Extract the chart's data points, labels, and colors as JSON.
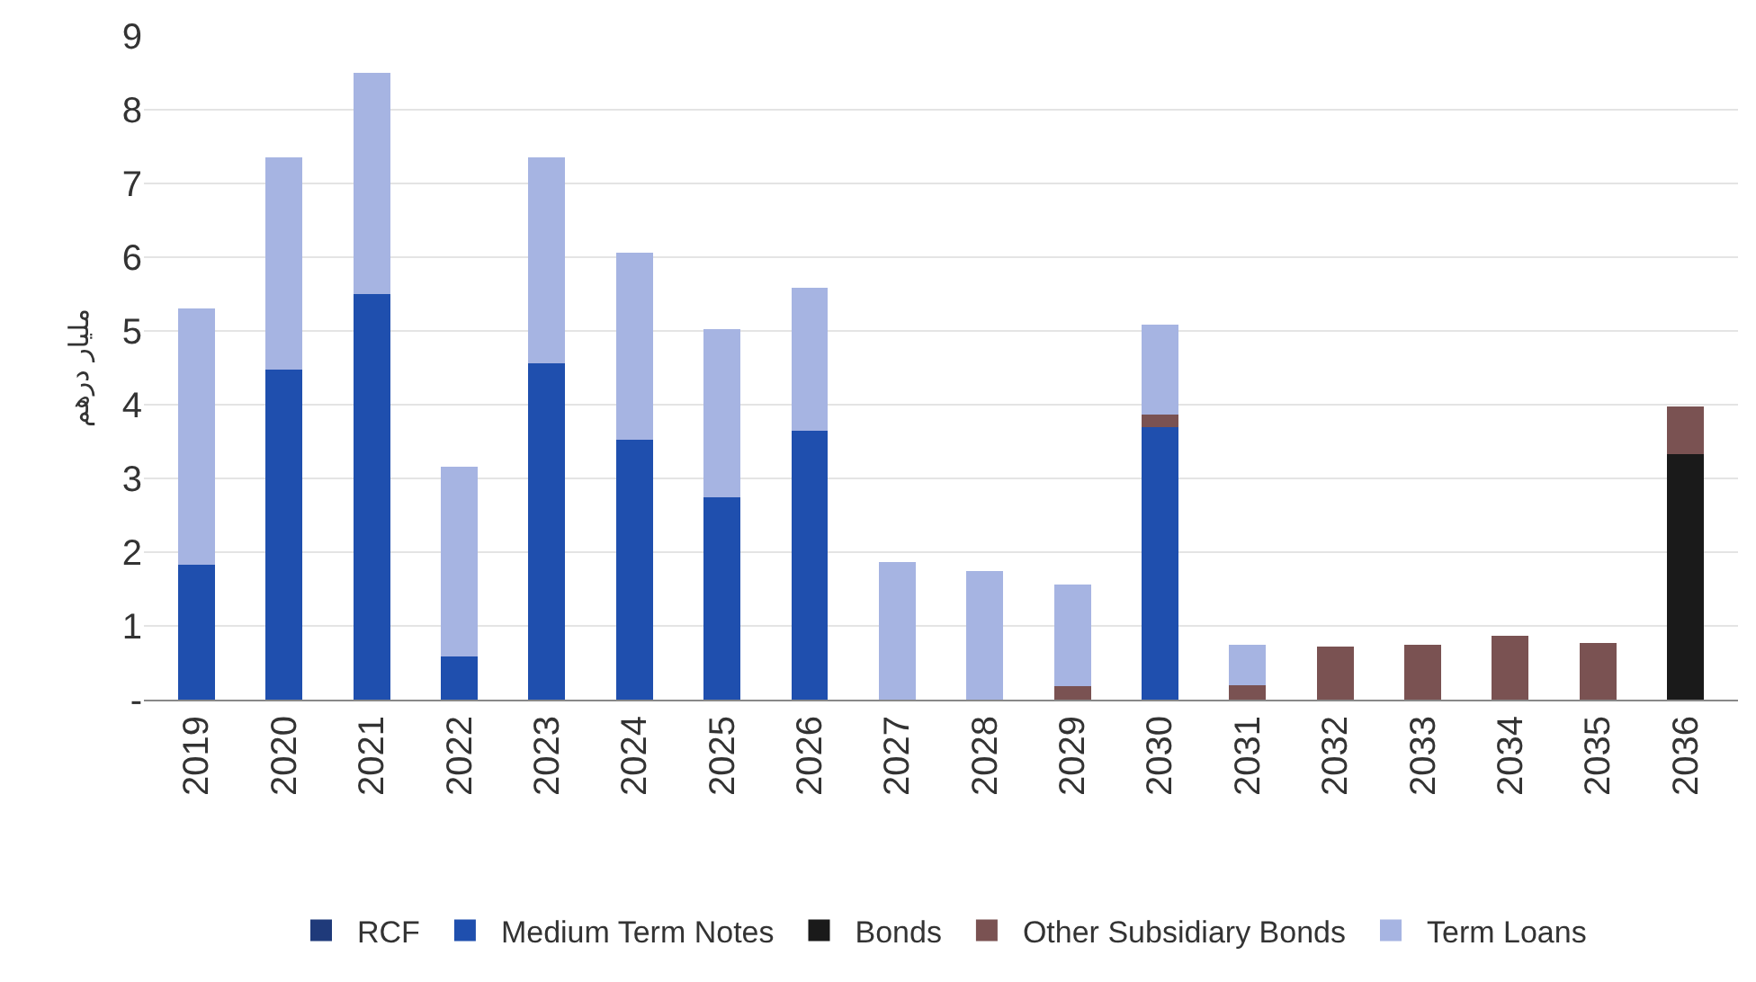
{
  "chart_data": {
    "type": "bar",
    "stacked": true,
    "ylabel": "مليار درهم",
    "categories": [
      "2019",
      "2020",
      "2021",
      "2022",
      "2023",
      "2024",
      "2025",
      "2026",
      "2027",
      "2028",
      "2029",
      "2030",
      "2031",
      "2032",
      "2033",
      "2034",
      "2035",
      "2036"
    ],
    "series": [
      {
        "name": "RCF",
        "color": "#1f3a7a",
        "values": [
          0,
          0,
          0,
          0,
          0,
          0,
          0,
          0,
          0,
          0,
          0,
          0,
          0,
          0,
          0,
          0,
          0,
          0
        ]
      },
      {
        "name": "Medium Term Notes",
        "color": "#1f4fae",
        "values": [
          1.83,
          4.48,
          5.5,
          0.58,
          4.56,
          3.53,
          2.74,
          3.65,
          0,
          0,
          0,
          3.69,
          0,
          0,
          0,
          0,
          0,
          0
        ]
      },
      {
        "name": "Bonds",
        "color": "#1a1a1a",
        "values": [
          0,
          0,
          0,
          0,
          0,
          0,
          0,
          0,
          0,
          0,
          0,
          0,
          0,
          0,
          0,
          0,
          0,
          3.33
        ]
      },
      {
        "name": "Other Subsidiary Bonds",
        "color": "#7a5252",
        "values": [
          0,
          0,
          0,
          0,
          0,
          0,
          0,
          0,
          0,
          0,
          0.18,
          0.18,
          0.2,
          0.72,
          0.75,
          0.87,
          0.77,
          0.65
        ]
      },
      {
        "name": "Term Loans",
        "color": "#a6b4e2",
        "values": [
          3.48,
          2.87,
          3.0,
          2.58,
          2.79,
          2.53,
          2.28,
          1.93,
          1.86,
          1.75,
          1.38,
          1.22,
          0.54,
          0,
          0,
          0,
          0,
          0
        ]
      }
    ],
    "ylim": [
      0,
      9
    ],
    "yticks": [
      {
        "value": 0,
        "label": "-"
      },
      1,
      2,
      3,
      4,
      5,
      6,
      7,
      8,
      9
    ],
    "grid": "y",
    "legend": "bottom"
  }
}
